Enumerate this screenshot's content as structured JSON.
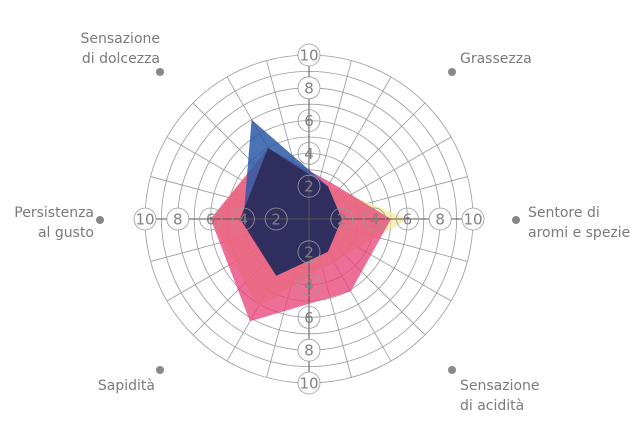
{
  "chart_data": {
    "type": "radar",
    "categories": [
      {
        "label": [
          "Sentore di",
          "aromi e spezie"
        ]
      },
      {
        "label": [
          "Grassezza"
        ]
      },
      {
        "label": [
          "Sensazione",
          "di dolcezza"
        ]
      },
      {
        "label": [
          "Persistenza",
          "al gusto"
        ]
      },
      {
        "label": [
          "Sapidità"
        ]
      },
      {
        "label": [
          "Sensazione",
          "di acidità"
        ]
      }
    ],
    "rlim": [
      0,
      10
    ],
    "ticks": [
      "2",
      "4",
      "6",
      "8",
      "10"
    ],
    "grid": true,
    "series": [
      {
        "color": "#f3ec9a",
        "values": [
          6,
          2.3,
          5,
          6,
          6.2,
          3
        ]
      },
      {
        "color": "#e8457a",
        "values": [
          5,
          2.6,
          5,
          6,
          7.2,
          5.1
        ]
      },
      {
        "color": "#2b5ba6",
        "values": [
          2,
          2.3,
          7,
          4,
          4,
          2.3
        ]
      },
      {
        "color": "#2f2a58",
        "values": [
          2,
          2.3,
          5,
          4.2,
          4,
          2.3
        ]
      }
    ]
  }
}
